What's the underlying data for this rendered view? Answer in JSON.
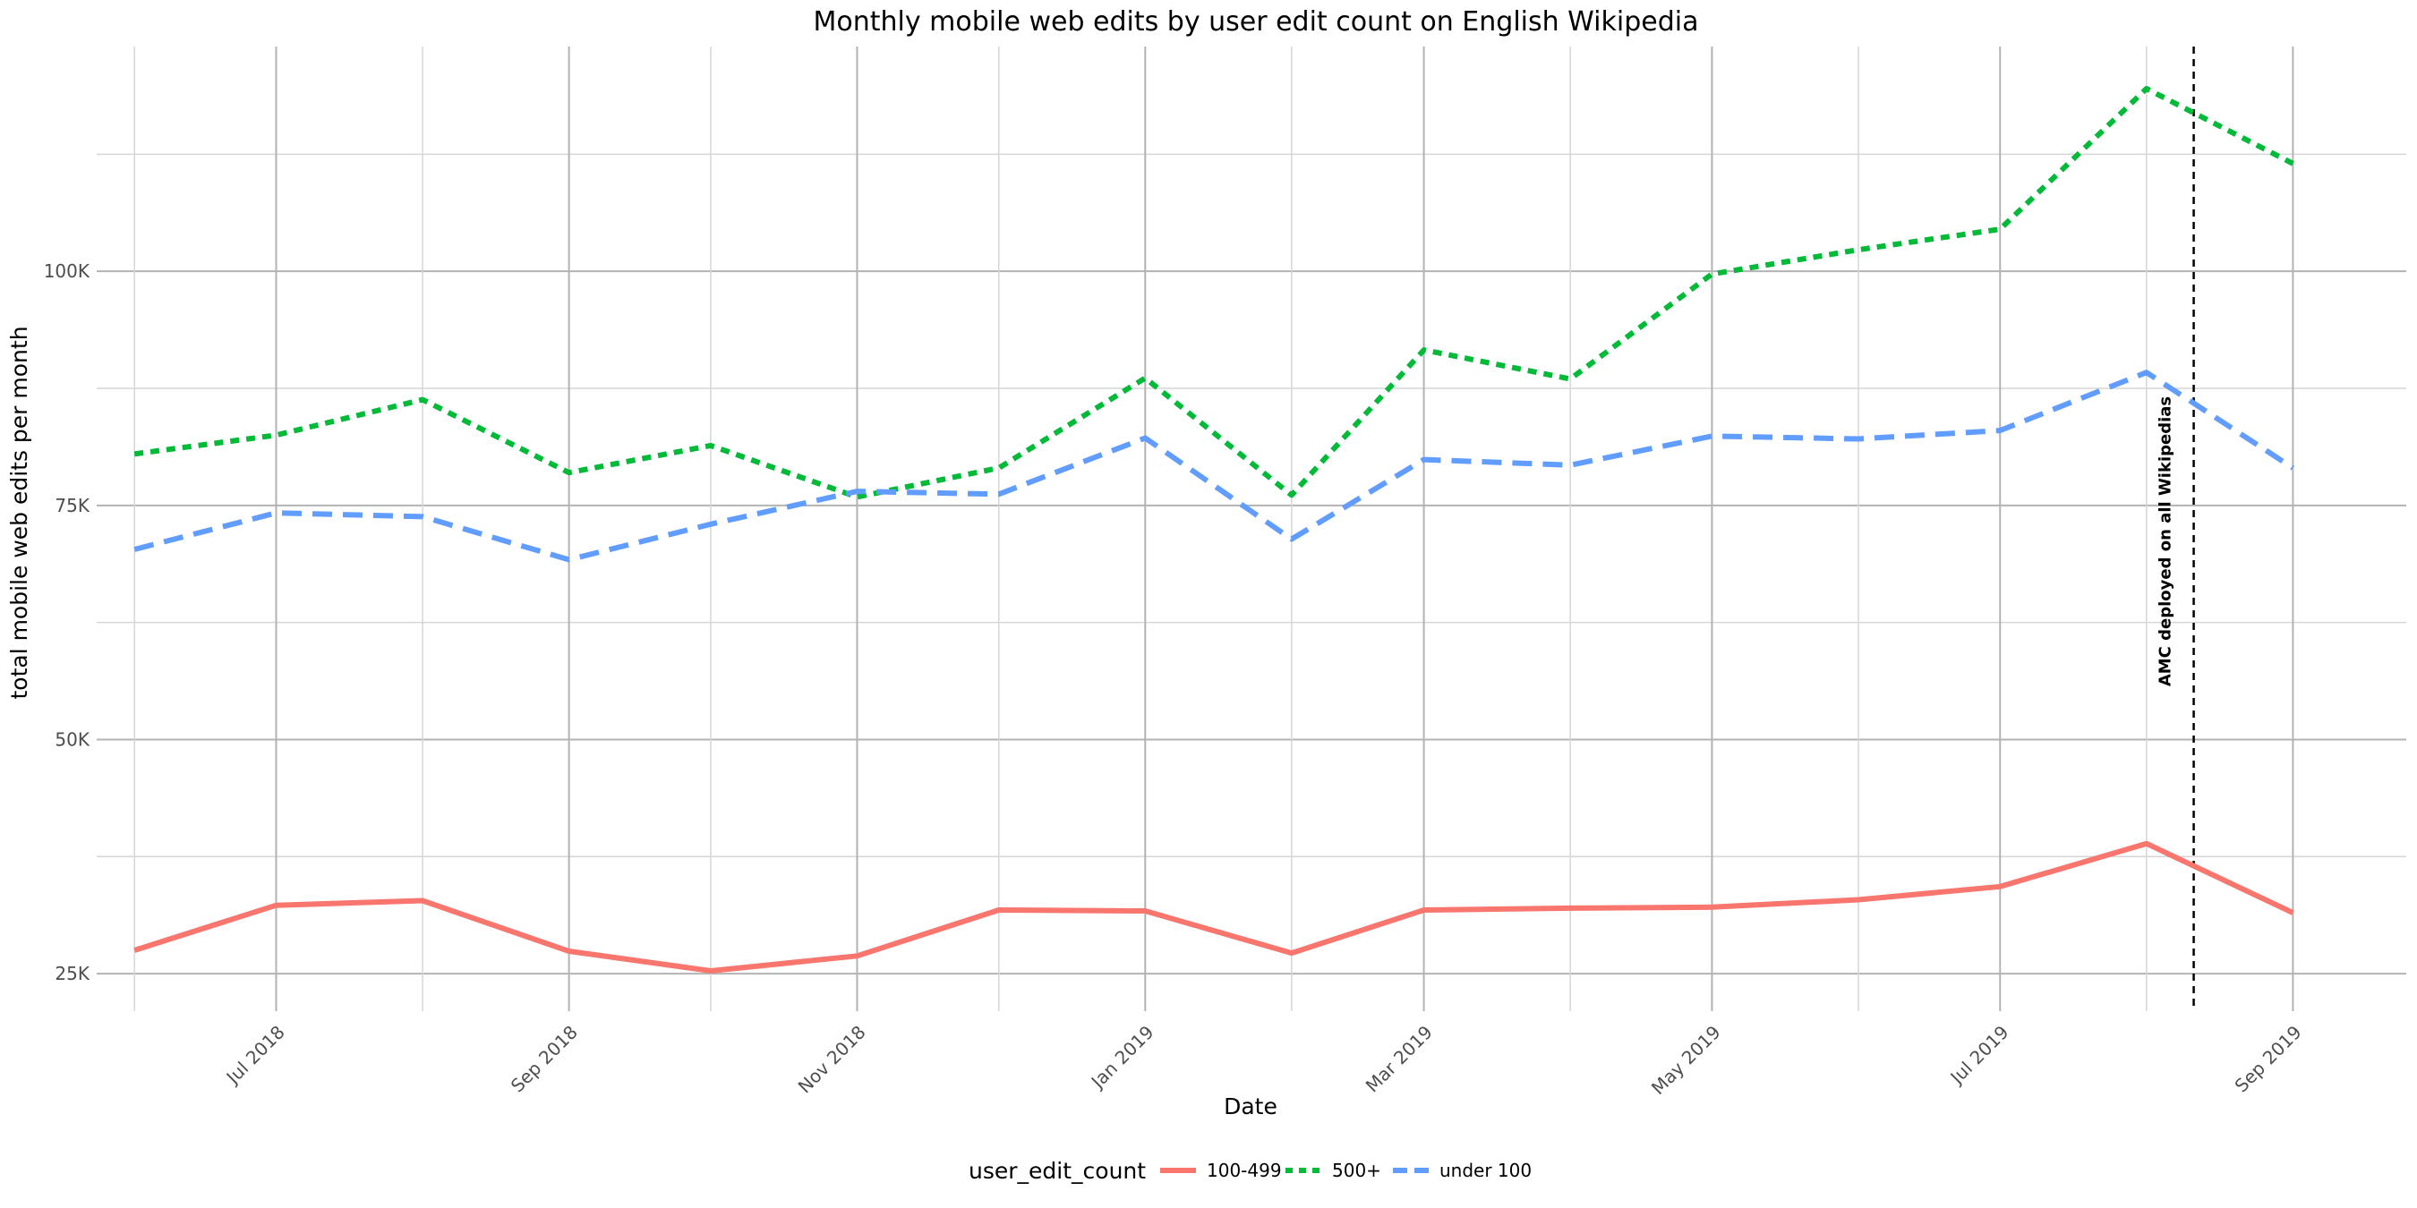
{
  "chart_data": {
    "type": "line",
    "title": "Monthly mobile web edits by user edit count on English Wikipedia",
    "xlabel": "Date",
    "ylabel": "total mobile web edits per month",
    "x": [
      "2018-06",
      "2018-07",
      "2018-08",
      "2018-09",
      "2018-10",
      "2018-11",
      "2018-12",
      "2019-01",
      "2019-02",
      "2019-03",
      "2019-04",
      "2019-05",
      "2019-06",
      "2019-07",
      "2019-08",
      "2019-09"
    ],
    "x_ticks": [
      {
        "date": "2018-07",
        "label": "Jul 2018"
      },
      {
        "date": "2018-09",
        "label": "Sep 2018"
      },
      {
        "date": "2018-11",
        "label": "Nov 2018"
      },
      {
        "date": "2019-01",
        "label": "Jan 2019"
      },
      {
        "date": "2019-03",
        "label": "Mar 2019"
      },
      {
        "date": "2019-05",
        "label": "May 2019"
      },
      {
        "date": "2019-07",
        "label": "Jul 2019"
      },
      {
        "date": "2019-09",
        "label": "Sep 2019"
      }
    ],
    "y_ticks": [
      {
        "value": 25000,
        "label": "25K"
      },
      {
        "value": 50000,
        "label": "50K"
      },
      {
        "value": 75000,
        "label": "75K"
      },
      {
        "value": 100000,
        "label": "100K"
      }
    ],
    "xlim": [
      "2018-05-24",
      "2019-09-25"
    ],
    "ylim": [
      21000,
      124000
    ],
    "grid": true,
    "legend": {
      "title": "user_edit_count",
      "position": "bottom"
    },
    "series": [
      {
        "name": "100-499",
        "color": "#F8766D",
        "dash": "solid",
        "values": [
          27500,
          32300,
          32800,
          27400,
          25300,
          26900,
          31800,
          31700,
          27200,
          31800,
          32000,
          32100,
          32900,
          34300,
          38900,
          31500
        ]
      },
      {
        "name": "500+",
        "color": "#00BA38",
        "dash": "dotted",
        "values": [
          80500,
          82500,
          86300,
          78500,
          81400,
          75900,
          79000,
          88600,
          76100,
          91600,
          88500,
          99700,
          102300,
          104500,
          119500,
          111500
        ]
      },
      {
        "name": "under 100",
        "color": "#619CFF",
        "dash": "dashed",
        "values": [
          70300,
          74200,
          73800,
          69200,
          73000,
          76500,
          76200,
          82200,
          71400,
          79900,
          79300,
          82400,
          82100,
          83000,
          89200,
          79000
        ]
      }
    ],
    "annotations": [
      {
        "type": "vline",
        "date": "2019-08-11",
        "text": "AMC deployed on all Wikipedias",
        "style": "dashed"
      }
    ]
  }
}
